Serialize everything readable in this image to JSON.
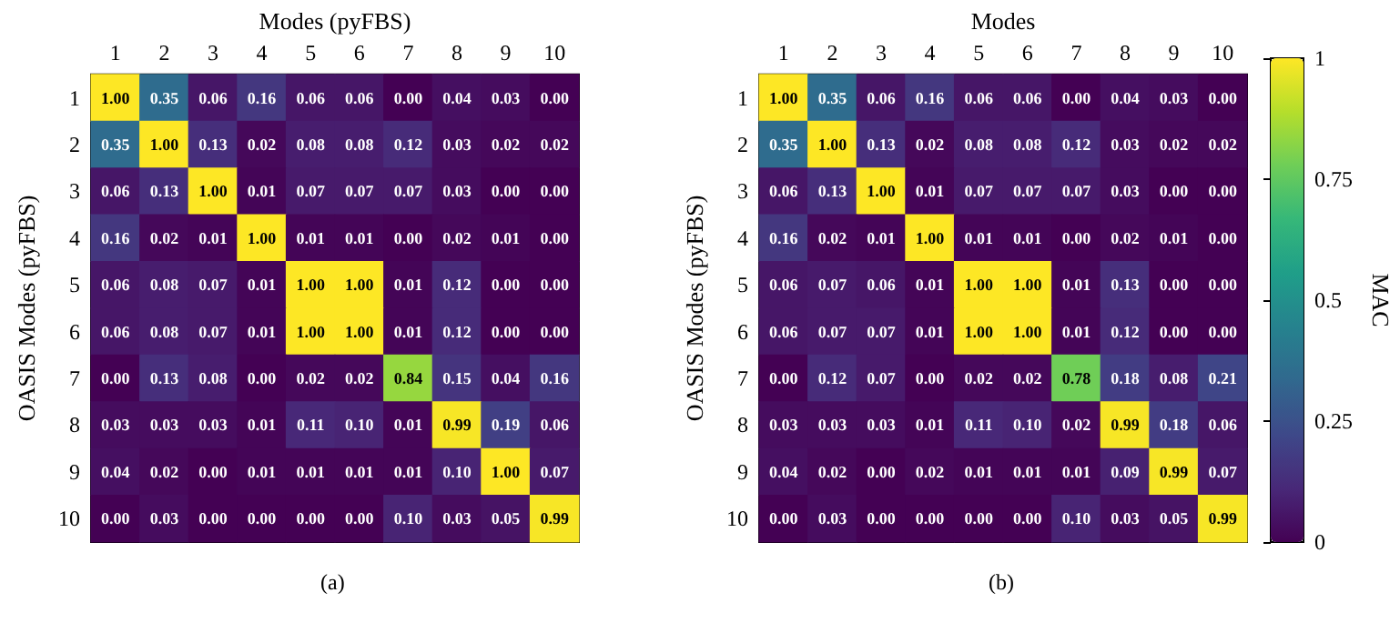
{
  "chart_data": [
    {
      "type": "heatmap",
      "xlabel": "Modes (pyFBS)",
      "ylabel": "OASIS Modes (pyFBS)",
      "annotations": [
        "(a)"
      ],
      "categories": [
        "1",
        "2",
        "3",
        "4",
        "5",
        "6",
        "7",
        "8",
        "9",
        "10"
      ],
      "y_categories": [
        "1",
        "2",
        "3",
        "4",
        "5",
        "6",
        "7",
        "8",
        "9",
        "10"
      ],
      "cells": [
        [
          1.0,
          0.35,
          0.06,
          0.16,
          0.06,
          0.06,
          0.0,
          0.04,
          0.03,
          0.0
        ],
        [
          0.35,
          1.0,
          0.13,
          0.02,
          0.08,
          0.08,
          0.12,
          0.03,
          0.02,
          0.02
        ],
        [
          0.06,
          0.13,
          1.0,
          0.01,
          0.07,
          0.07,
          0.07,
          0.03,
          0.0,
          0.0
        ],
        [
          0.16,
          0.02,
          0.01,
          1.0,
          0.01,
          0.01,
          0.0,
          0.02,
          0.01,
          0.0
        ],
        [
          0.06,
          0.08,
          0.07,
          0.01,
          1.0,
          1.0,
          0.01,
          0.12,
          0.0,
          0.0
        ],
        [
          0.06,
          0.08,
          0.07,
          0.01,
          1.0,
          1.0,
          0.01,
          0.12,
          0.0,
          0.0
        ],
        [
          0.0,
          0.13,
          0.08,
          0.0,
          0.02,
          0.02,
          0.84,
          0.15,
          0.04,
          0.16
        ],
        [
          0.03,
          0.03,
          0.03,
          0.01,
          0.11,
          0.1,
          0.01,
          0.99,
          0.19,
          0.06
        ],
        [
          0.04,
          0.02,
          0.0,
          0.01,
          0.01,
          0.01,
          0.01,
          0.1,
          1.0,
          0.07
        ],
        [
          0.0,
          0.03,
          0.0,
          0.0,
          0.0,
          0.0,
          0.1,
          0.03,
          0.05,
          0.99
        ]
      ],
      "cell_labels": [
        [
          "1.00",
          "0.35",
          "0.06",
          "0.16",
          "0.06",
          "0.06",
          "0.00",
          "0.04",
          "0.03",
          "0.00"
        ],
        [
          "0.35",
          "1.00",
          "0.13",
          "0.02",
          "0.08",
          "0.08",
          "0.12",
          "0.03",
          "0.02",
          "0.02"
        ],
        [
          "0.06",
          "0.13",
          "1.00",
          "0.01",
          "0.07",
          "0.07",
          "0.07",
          "0.03",
          "0.00",
          "0.00"
        ],
        [
          "0.16",
          "0.02",
          "0.01",
          "1.00",
          "0.01",
          "0.01",
          "0.00",
          "0.02",
          "0.01",
          "0.00"
        ],
        [
          "0.06",
          "0.08",
          "0.07",
          "0.01",
          "1.00",
          "1.00",
          "0.01",
          "0.12",
          "0.00",
          "0.00"
        ],
        [
          "0.06",
          "0.08",
          "0.07",
          "0.01",
          "1.00",
          "1.00",
          "0.01",
          "0.12",
          "0.00",
          "0.00"
        ],
        [
          "0.00",
          "0.13",
          "0.08",
          "0.00",
          "0.02",
          "0.02",
          "0.84",
          "0.15",
          "0.04",
          "0.16"
        ],
        [
          "0.03",
          "0.03",
          "0.03",
          "0.01",
          "0.11",
          "0.10",
          "0.01",
          "0.99",
          "0.19",
          "0.06"
        ],
        [
          "0.04",
          "0.02",
          "0.00",
          "0.01",
          "0.01",
          "0.01",
          "0.01",
          "0.10",
          "1.00",
          "0.07"
        ],
        [
          "0.00",
          "0.03",
          "0.00",
          "0.00",
          "0.00",
          "0.00",
          "0.10",
          "0.03",
          "0.05",
          "0.99"
        ]
      ]
    },
    {
      "type": "heatmap",
      "xlabel": "Modes",
      "ylabel": "OASIS Modes (pyFBS)",
      "annotations": [
        "(b)"
      ],
      "clabel": "MAC",
      "clim": [
        0,
        1
      ],
      "cticks": [
        0,
        0.25,
        0.5,
        0.75,
        1
      ],
      "categories": [
        "1",
        "2",
        "3",
        "4",
        "5",
        "6",
        "7",
        "8",
        "9",
        "10"
      ],
      "y_categories": [
        "1",
        "2",
        "3",
        "4",
        "5",
        "6",
        "7",
        "8",
        "9",
        "10"
      ],
      "cells": [
        [
          1.0,
          0.35,
          0.06,
          0.16,
          0.06,
          0.06,
          0.0,
          0.04,
          0.03,
          0.0
        ],
        [
          0.35,
          1.0,
          0.13,
          0.02,
          0.08,
          0.08,
          0.12,
          0.03,
          0.02,
          0.02
        ],
        [
          0.06,
          0.13,
          1.0,
          0.01,
          0.07,
          0.07,
          0.07,
          0.03,
          0.0,
          0.0
        ],
        [
          0.16,
          0.02,
          0.01,
          1.0,
          0.01,
          0.01,
          0.0,
          0.02,
          0.01,
          0.0
        ],
        [
          0.06,
          0.07,
          0.06,
          0.01,
          1.0,
          1.0,
          0.01,
          0.13,
          0.0,
          0.0
        ],
        [
          0.06,
          0.07,
          0.07,
          0.01,
          1.0,
          1.0,
          0.01,
          0.12,
          0.0,
          0.0
        ],
        [
          0.0,
          0.12,
          0.07,
          0.0,
          0.02,
          0.02,
          0.78,
          0.18,
          0.08,
          0.21
        ],
        [
          0.03,
          0.03,
          0.03,
          0.01,
          0.11,
          0.1,
          0.02,
          0.99,
          0.18,
          0.06
        ],
        [
          0.04,
          0.02,
          0.0,
          0.02,
          0.01,
          0.01,
          0.01,
          0.09,
          0.99,
          0.07
        ],
        [
          0.0,
          0.03,
          0.0,
          0.0,
          0.0,
          0.0,
          0.1,
          0.03,
          0.05,
          0.99
        ]
      ],
      "cell_labels": [
        [
          "1.00",
          "0.35",
          "0.06",
          "0.16",
          "0.06",
          "0.06",
          "0.00",
          "0.04",
          "0.03",
          "0.00"
        ],
        [
          "0.35",
          "1.00",
          "0.13",
          "0.02",
          "0.08",
          "0.08",
          "0.12",
          "0.03",
          "0.02",
          "0.02"
        ],
        [
          "0.06",
          "0.13",
          "1.00",
          "0.01",
          "0.07",
          "0.07",
          "0.07",
          "0.03",
          "0.00",
          "0.00"
        ],
        [
          "0.16",
          "0.02",
          "0.01",
          "1.00",
          "0.01",
          "0.01",
          "0.00",
          "0.02",
          "0.01",
          "0.00"
        ],
        [
          "0.06",
          "0.07",
          "0.06",
          "0.01",
          "1.00",
          "1.00",
          "0.01",
          "0.13",
          "0.00",
          "0.00"
        ],
        [
          "0.06",
          "0.07",
          "0.07",
          "0.01",
          "1.00",
          "1.00",
          "0.01",
          "0.12",
          "0.00",
          "0.00"
        ],
        [
          "0.00",
          "0.12",
          "0.07",
          "0.00",
          "0.02",
          "0.02",
          "0.78",
          "0.18",
          "0.08",
          "0.21"
        ],
        [
          "0.03",
          "0.03",
          "0.03",
          "0.01",
          "0.11",
          "0.10",
          "0.02",
          "0.99",
          "0.18",
          "0.06"
        ],
        [
          "0.04",
          "0.02",
          "0.00",
          "0.02",
          "0.01",
          "0.01",
          "0.01",
          "0.09",
          "0.99",
          "0.07"
        ],
        [
          "0.00",
          "0.03",
          "0.00",
          "0.00",
          "0.00",
          "0.00",
          "0.10",
          "0.03",
          "0.05",
          "0.99"
        ]
      ]
    }
  ]
}
